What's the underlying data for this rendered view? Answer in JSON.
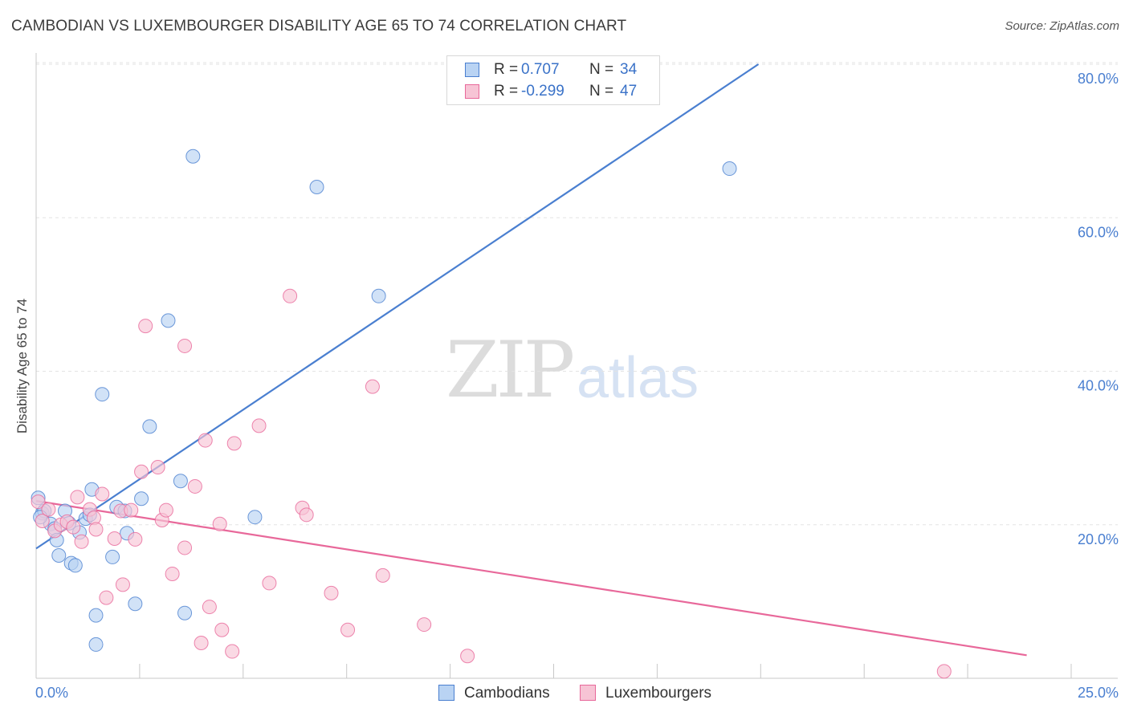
{
  "title": "CAMBODIAN VS LUXEMBOURGER DISABILITY AGE 65 TO 74 CORRELATION CHART",
  "source": "Source: ZipAtlas.com",
  "watermark": {
    "zip": "ZIP",
    "atlas": "atlas"
  },
  "colors": {
    "blue": "#4a7fd0",
    "blue_fill": "#b9d3f3",
    "pink": "#e8689a",
    "pink_fill": "#f7c4d5",
    "grid": "#e3e3e3"
  },
  "legend": {
    "rows": [
      {
        "r_label": "R =",
        "r_value": "0.707",
        "n_label": "N =",
        "n_value": "34"
      },
      {
        "r_label": "R =",
        "r_value": "-0.299",
        "n_label": "N =",
        "n_value": "47"
      }
    ]
  },
  "bottom_legend": {
    "items": [
      "Cambodians",
      "Luxembourgers"
    ]
  },
  "chart_data": {
    "type": "scatter",
    "ylabel": "Disability Age 65 to 74",
    "xlim": [
      0,
      25
    ],
    "ylim": [
      0,
      80
    ],
    "x_tick_labels": [
      "0.0%",
      "25.0%"
    ],
    "y_ticks": [
      20,
      40,
      60,
      80
    ],
    "y_tick_labels": [
      "20.0%",
      "40.0%",
      "60.0%",
      "80.0%"
    ],
    "grid": true,
    "series": [
      {
        "name": "Cambodians",
        "color": "#4a7fd0",
        "points": [
          [
            0.05,
            23.5
          ],
          [
            0.15,
            21.5
          ],
          [
            0.2,
            21.8
          ],
          [
            0.35,
            20.1
          ],
          [
            0.45,
            19.5
          ],
          [
            0.5,
            18.0
          ],
          [
            0.55,
            16.0
          ],
          [
            0.7,
            21.8
          ],
          [
            0.8,
            20.2
          ],
          [
            0.85,
            15.0
          ],
          [
            0.95,
            14.7
          ],
          [
            1.05,
            19.0
          ],
          [
            1.2,
            20.8
          ],
          [
            1.3,
            21.3
          ],
          [
            1.35,
            24.6
          ],
          [
            1.45,
            8.2
          ],
          [
            1.45,
            4.4
          ],
          [
            1.6,
            37.0
          ],
          [
            1.85,
            15.8
          ],
          [
            1.95,
            22.3
          ],
          [
            2.15,
            21.8
          ],
          [
            2.2,
            18.9
          ],
          [
            2.4,
            9.7
          ],
          [
            2.55,
            23.4
          ],
          [
            2.75,
            32.8
          ],
          [
            3.2,
            46.6
          ],
          [
            3.5,
            25.7
          ],
          [
            3.6,
            8.5
          ],
          [
            3.8,
            68.0
          ],
          [
            5.3,
            21.0
          ],
          [
            6.8,
            64.0
          ],
          [
            8.3,
            49.8
          ],
          [
            16.8,
            66.4
          ],
          [
            0.1,
            21.0
          ]
        ]
      },
      {
        "name": "Luxembourgers",
        "color": "#e8689a",
        "points": [
          [
            0.05,
            23.0
          ],
          [
            0.15,
            20.5
          ],
          [
            0.3,
            22.0
          ],
          [
            0.45,
            19.2
          ],
          [
            0.6,
            20.0
          ],
          [
            0.75,
            20.4
          ],
          [
            0.9,
            19.7
          ],
          [
            1.0,
            23.6
          ],
          [
            1.1,
            17.8
          ],
          [
            1.3,
            22.0
          ],
          [
            1.4,
            20.9
          ],
          [
            1.45,
            19.4
          ],
          [
            1.6,
            24.0
          ],
          [
            1.7,
            10.5
          ],
          [
            1.9,
            18.2
          ],
          [
            2.05,
            21.8
          ],
          [
            2.1,
            12.2
          ],
          [
            2.3,
            21.9
          ],
          [
            2.4,
            18.1
          ],
          [
            2.55,
            26.9
          ],
          [
            2.65,
            45.9
          ],
          [
            2.95,
            27.5
          ],
          [
            3.05,
            20.6
          ],
          [
            3.15,
            21.9
          ],
          [
            3.3,
            13.6
          ],
          [
            3.6,
            17.0
          ],
          [
            3.6,
            43.3
          ],
          [
            3.85,
            25.0
          ],
          [
            4.0,
            4.6
          ],
          [
            4.1,
            31.0
          ],
          [
            4.2,
            9.3
          ],
          [
            4.45,
            20.1
          ],
          [
            4.5,
            6.3
          ],
          [
            4.75,
            3.5
          ],
          [
            4.8,
            30.6
          ],
          [
            5.4,
            32.9
          ],
          [
            5.65,
            12.4
          ],
          [
            6.15,
            49.8
          ],
          [
            6.45,
            22.2
          ],
          [
            6.55,
            21.3
          ],
          [
            7.15,
            11.1
          ],
          [
            7.55,
            6.3
          ],
          [
            8.15,
            38.0
          ],
          [
            8.4,
            13.4
          ],
          [
            9.4,
            7.0
          ],
          [
            10.45,
            2.9
          ],
          [
            22.0,
            0.9
          ]
        ]
      }
    ],
    "trend_lines": [
      {
        "name": "Cambodians",
        "x": [
          0,
          17.5
        ],
        "y": [
          16.9,
          80.0
        ]
      },
      {
        "name": "Luxembourgers",
        "x": [
          0,
          24.0
        ],
        "y": [
          23.1,
          3.0
        ]
      }
    ]
  }
}
